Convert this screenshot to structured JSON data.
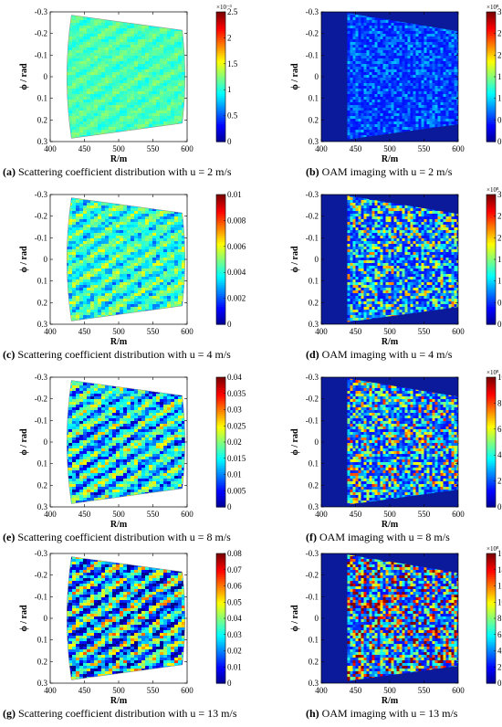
{
  "palette": {
    "jet": [
      "#00008f",
      "#0000ff",
      "#007fff",
      "#00ffff",
      "#7fff7f",
      "#ffff00",
      "#ff7f00",
      "#ff0000",
      "#7f0000"
    ],
    "oam_background": "#0a1a9a"
  },
  "chart_data": [
    {
      "id": "a",
      "type": "heatmap",
      "kind": "scattering",
      "caption_letter": "(a)",
      "caption_text": " Scattering coefficient distribution with u = 2 m/s",
      "xlabel": "R/m",
      "ylabel": "ϕ / rad",
      "xlim": [
        400,
        600
      ],
      "ylim": [
        -0.3,
        0.3
      ],
      "xticks": [
        "400",
        "450",
        "500",
        "550",
        "600"
      ],
      "yticks": [
        "-0.3",
        "-0.2",
        "-0.1",
        "0",
        "0.1",
        "0.2",
        "0.3"
      ],
      "colorbar_ticks": [
        "0",
        "0.5",
        "1",
        "1.5",
        "2",
        "2.5"
      ],
      "colorbar_max": 2.5,
      "colorbar_exponent": "×10⁻³",
      "wind_speed": "2 m/s"
    },
    {
      "id": "b",
      "type": "heatmap",
      "kind": "oam",
      "caption_letter": "(b)",
      "caption_text": " OAM imaging with u = 2 m/s",
      "xlabel": "R/m",
      "ylabel": "ϕ / rad",
      "xlim": [
        400,
        600
      ],
      "ylim": [
        -0.3,
        0.3
      ],
      "xticks": [
        "400",
        "450",
        "500",
        "550",
        "600"
      ],
      "yticks": [
        "-0.3",
        "-0.2",
        "-0.1",
        "0",
        "0.1",
        "0.2",
        "0.3"
      ],
      "colorbar_ticks": [
        "0",
        "0.5",
        "1",
        "1.5",
        "2",
        "2.5",
        "3"
      ],
      "colorbar_max": 3,
      "colorbar_exponent": "×10⁸",
      "wind_speed": "2 m/s"
    },
    {
      "id": "c",
      "type": "heatmap",
      "kind": "scattering",
      "caption_letter": "(c)",
      "caption_text": " Scattering coefficient distribution with u = 4 m/s",
      "xlabel": "R/m",
      "ylabel": "ϕ / rad",
      "xlim": [
        400,
        600
      ],
      "ylim": [
        -0.3,
        0.3
      ],
      "xticks": [
        "400",
        "450",
        "500",
        "550",
        "600"
      ],
      "yticks": [
        "-0.3",
        "-0.2",
        "-0.1",
        "0",
        "0.1",
        "0.2",
        "0.3"
      ],
      "colorbar_ticks": [
        "0",
        "0.002",
        "0.004",
        "0.006",
        "0.008",
        "0.01"
      ],
      "colorbar_max": 0.01,
      "colorbar_exponent": "",
      "wind_speed": "4 m/s"
    },
    {
      "id": "d",
      "type": "heatmap",
      "kind": "oam",
      "caption_letter": "(d)",
      "caption_text": " OAM imaging with u = 4 m/s",
      "xlabel": "R/m",
      "ylabel": "ϕ / rad",
      "xlim": [
        400,
        600
      ],
      "ylim": [
        -0.3,
        0.3
      ],
      "xticks": [
        "400",
        "450",
        "500",
        "550",
        "600"
      ],
      "yticks": [
        "-0.3",
        "-0.2",
        "-0.1",
        "0",
        "0.1",
        "0.2",
        "0.3"
      ],
      "colorbar_ticks": [
        "0",
        "0.5",
        "1",
        "1.5",
        "2",
        "2.5",
        "3"
      ],
      "colorbar_max": 3,
      "colorbar_exponent": "×10⁸",
      "wind_speed": "4 m/s"
    },
    {
      "id": "e",
      "type": "heatmap",
      "kind": "scattering",
      "caption_letter": "(e)",
      "caption_text": " Scattering coefficient distribution with u = 8 m/s",
      "xlabel": "R/m",
      "ylabel": "ϕ / rad",
      "xlim": [
        400,
        600
      ],
      "ylim": [
        -0.3,
        0.3
      ],
      "xticks": [
        "400",
        "450",
        "500",
        "550",
        "600"
      ],
      "yticks": [
        "-0.3",
        "-0.2",
        "-0.1",
        "0",
        "0.1",
        "0.2",
        "0.3"
      ],
      "colorbar_ticks": [
        "0",
        "0.005",
        "0.01",
        "0.015",
        "0.02",
        "0.025",
        "0.03",
        "0.035",
        "0.04"
      ],
      "colorbar_max": 0.04,
      "colorbar_exponent": "",
      "wind_speed": "8 m/s"
    },
    {
      "id": "f",
      "type": "heatmap",
      "kind": "oam",
      "caption_letter": "(f)",
      "caption_text": " OAM imaging with u = 8 m/s",
      "xlabel": "R/m",
      "ylabel": "ϕ / rad",
      "xlim": [
        400,
        600
      ],
      "ylim": [
        -0.3,
        0.3
      ],
      "xticks": [
        "400",
        "450",
        "500",
        "550",
        "600"
      ],
      "yticks": [
        "-0.3",
        "-0.2",
        "-0.1",
        "0",
        "0.1",
        "0.2",
        "0.3"
      ],
      "colorbar_ticks": [
        "0",
        "2",
        "4",
        "6",
        "8",
        "10"
      ],
      "colorbar_max": 10,
      "colorbar_exponent": "×10⁸",
      "wind_speed": "8 m/s"
    },
    {
      "id": "g",
      "type": "heatmap",
      "kind": "scattering",
      "caption_letter": "(g)",
      "caption_text": " Scattering coefficient distribution with u = 13 m/s",
      "xlabel": "R/m",
      "ylabel": "ϕ / rad",
      "xlim": [
        400,
        600
      ],
      "ylim": [
        -0.3,
        0.3
      ],
      "xticks": [
        "400",
        "450",
        "500",
        "550",
        "600"
      ],
      "yticks": [
        "-0.3",
        "-0.2",
        "-0.1",
        "0",
        "0.1",
        "0.2",
        "0.3"
      ],
      "colorbar_ticks": [
        "0",
        "0.01",
        "0.02",
        "0.03",
        "0.04",
        "0.05",
        "0.06",
        "0.07",
        "0.08"
      ],
      "colorbar_max": 0.08,
      "colorbar_exponent": "",
      "wind_speed": "13 m/s"
    },
    {
      "id": "h",
      "type": "heatmap",
      "kind": "oam",
      "caption_letter": "(h)",
      "caption_text": " OAM imaging with u = 13 m/s",
      "xlabel": "R/m",
      "ylabel": "ϕ / rad",
      "xlim": [
        400,
        600
      ],
      "ylim": [
        -0.3,
        0.3
      ],
      "xticks": [
        "400",
        "450",
        "500",
        "550",
        "600"
      ],
      "yticks": [
        "-0.3",
        "-0.2",
        "-0.1",
        "0",
        "0.1",
        "0.2",
        "0.3"
      ],
      "colorbar_ticks": [
        "0",
        "2",
        "4",
        "6",
        "8",
        "10",
        "12",
        "14",
        "16"
      ],
      "colorbar_max": 16,
      "colorbar_exponent": "×10⁸",
      "wind_speed": "13 m/s"
    }
  ]
}
